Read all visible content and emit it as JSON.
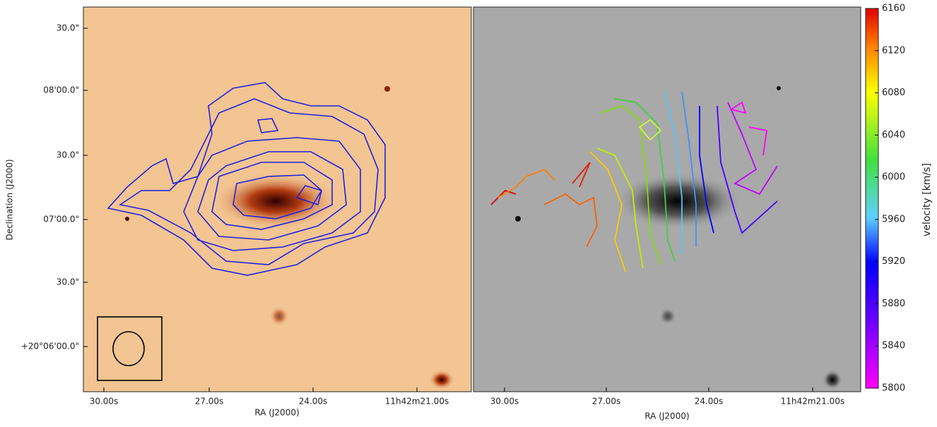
{
  "left_panel": {
    "xticks": [
      "30.00s",
      "27.00s",
      "24.00s",
      "11h42m21.00s"
    ],
    "xlabel": "RA (J2000)",
    "yticks": [
      "30.0\"",
      "08'00.0\"",
      "30.0\"",
      "07'00.0\"",
      "30.0\"",
      "+20°06'00.0\""
    ],
    "ylabel": "Declination (J2000)"
  },
  "right_panel": {
    "xticks": [
      "30.00s",
      "27.00s",
      "24.00s",
      "11h42m21.00s"
    ],
    "xlabel": "RA (J2000)"
  },
  "colorbar": {
    "label": "velocity [km/s]",
    "lim": [
      5800,
      6160
    ],
    "ticks": [
      5800,
      5840,
      5880,
      5920,
      5960,
      6000,
      6040,
      6080,
      6120,
      6160
    ]
  }
}
